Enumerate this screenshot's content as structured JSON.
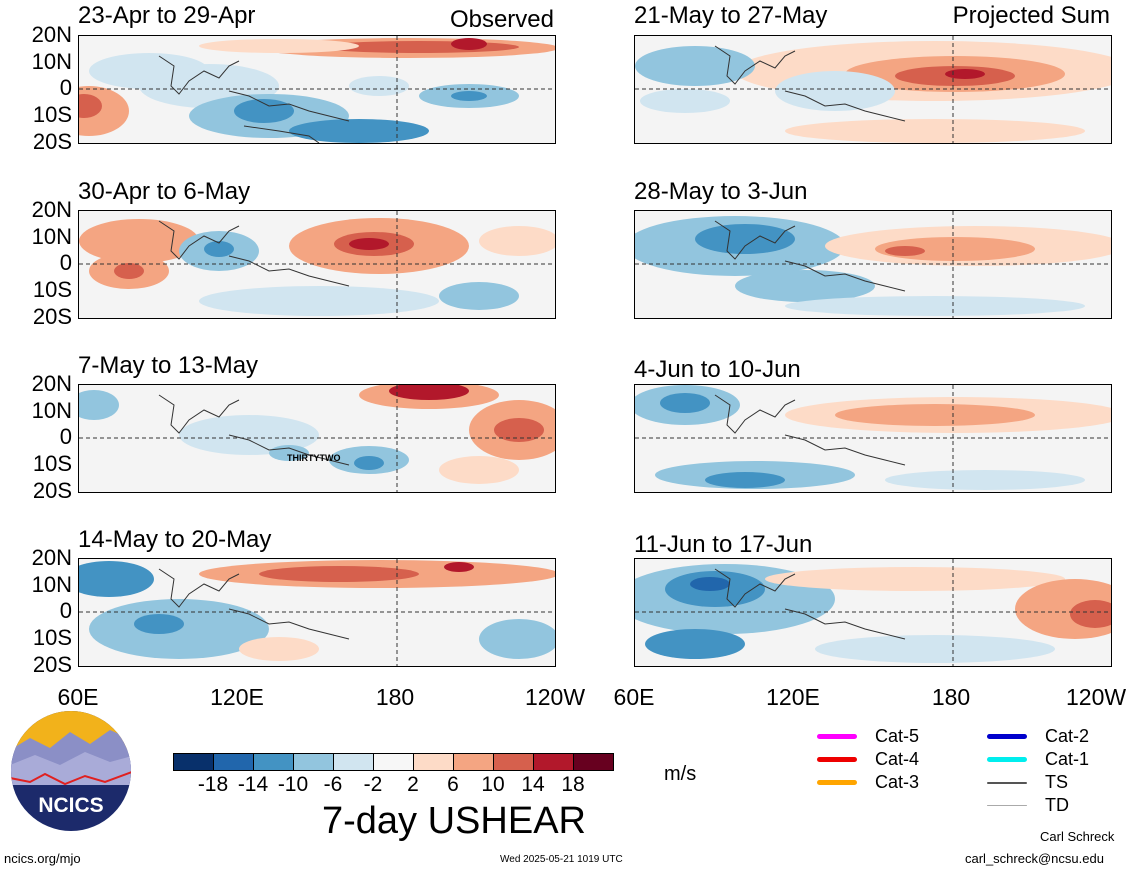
{
  "header": {
    "observed_label": "Observed",
    "projected_label": "Projected Sum"
  },
  "left_panels": [
    {
      "title": "23-Apr to 29-Apr"
    },
    {
      "title": "30-Apr to 6-May"
    },
    {
      "title": "7-May to 13-May",
      "annotation": "THIRTYTWO"
    },
    {
      "title": "14-May to 20-May"
    }
  ],
  "right_panels": [
    {
      "title": "21-May to 27-May"
    },
    {
      "title": "28-May to 3-Jun"
    },
    {
      "title": "4-Jun to 10-Jun"
    },
    {
      "title": "11-Jun to 17-Jun"
    }
  ],
  "lat_labels": [
    "20N",
    "10N",
    "0",
    "10S",
    "20S"
  ],
  "lon_labels": [
    "60E",
    "120E",
    "180",
    "120W"
  ],
  "colorbar": {
    "ticks": [
      "-18",
      "-14",
      "-10",
      "-6",
      "-2",
      "2",
      "6",
      "10",
      "14",
      "18"
    ],
    "colors": [
      "#08306b",
      "#2166ac",
      "#4393c3",
      "#92c5de",
      "#d1e5f0",
      "#f7f7f7",
      "#fddbc7",
      "#f4a582",
      "#d6604d",
      "#b2182b",
      "#67001f"
    ],
    "unit": "m/s",
    "title": "7-day USHEAR"
  },
  "legend": {
    "items": [
      {
        "label": "Cat-5",
        "color": "#ff00ff"
      },
      {
        "label": "Cat-4",
        "color": "#ee0000"
      },
      {
        "label": "Cat-3",
        "color": "#ffa500"
      },
      {
        "label": "Cat-2",
        "color": "#0000cc"
      },
      {
        "label": "Cat-1",
        "color": "#00eeee"
      },
      {
        "label": "TS",
        "color": "#555555"
      },
      {
        "label": "TD",
        "color": "#aaaaaa"
      }
    ]
  },
  "logo": {
    "text": "NCICS"
  },
  "footer": {
    "url": "ncics.org/mjo",
    "timestamp": "Wed 2025-05-21 1019 UTC",
    "author": "Carl Schreck",
    "email": "carl_schreck@ncsu.edu"
  }
}
